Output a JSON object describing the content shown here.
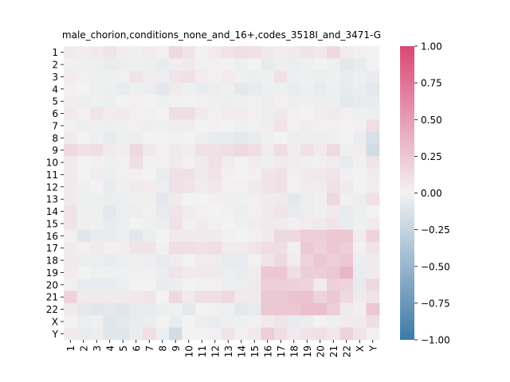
{
  "chart_data": {
    "type": "heatmap",
    "title": "male_chorion,conditions_none_and_16+,codes_3518I_and_3471-G",
    "xlabel": "",
    "ylabel": "",
    "row_labels": [
      "1",
      "2",
      "3",
      "4",
      "5",
      "6",
      "7",
      "8",
      "9",
      "10",
      "11",
      "12",
      "13",
      "14",
      "15",
      "16",
      "17",
      "18",
      "19",
      "20",
      "21",
      "22",
      "X",
      "Y"
    ],
    "col_labels": [
      "1",
      "2",
      "3",
      "4",
      "5",
      "6",
      "7",
      "8",
      "9",
      "10",
      "11",
      "12",
      "13",
      "14",
      "15",
      "16",
      "17",
      "18",
      "19",
      "20",
      "21",
      "22",
      "X",
      "Y"
    ],
    "values": [
      [
        0.05,
        0.03,
        0.05,
        0.08,
        0.03,
        0.02,
        0.04,
        0.02,
        0.15,
        0.08,
        0.02,
        0.04,
        0.09,
        0.12,
        0.1,
        0.06,
        0.03,
        0.05,
        0.08,
        0.06,
        0.15,
        0.04,
        0.02,
        0.0
      ],
      [
        0.02,
        -0.02,
        -0.03,
        -0.05,
        -0.04,
        -0.02,
        -0.03,
        -0.05,
        0.03,
        0.05,
        0.02,
        0.02,
        0.0,
        -0.02,
        0.0,
        -0.06,
        -0.03,
        -0.04,
        -0.02,
        0.0,
        -0.02,
        -0.08,
        -0.05,
        0.0
      ],
      [
        0.04,
        0.02,
        -0.02,
        -0.02,
        0.02,
        0.08,
        0.04,
        -0.03,
        0.08,
        0.1,
        0.04,
        0.02,
        0.04,
        -0.02,
        -0.03,
        -0.02,
        0.1,
        -0.03,
        -0.02,
        -0.04,
        -0.02,
        -0.05,
        -0.03,
        -0.05
      ],
      [
        0.02,
        0.0,
        -0.02,
        -0.03,
        -0.05,
        -0.02,
        -0.04,
        -0.08,
        0.05,
        -0.02,
        -0.05,
        -0.04,
        -0.02,
        -0.08,
        -0.06,
        -0.03,
        -0.02,
        -0.05,
        -0.03,
        -0.05,
        -0.03,
        -0.06,
        -0.04,
        -0.08
      ],
      [
        0.03,
        -0.04,
        -0.02,
        -0.03,
        0.0,
        0.02,
        0.0,
        -0.02,
        0.02,
        0.0,
        0.02,
        -0.02,
        -0.03,
        -0.02,
        0.02,
        -0.04,
        0.02,
        -0.03,
        -0.02,
        -0.03,
        -0.03,
        -0.08,
        -0.06,
        -0.05
      ],
      [
        0.05,
        0.02,
        0.08,
        0.04,
        0.05,
        0.02,
        0.02,
        0.0,
        0.12,
        0.12,
        0.05,
        0.02,
        0.04,
        0.04,
        0.02,
        -0.04,
        0.06,
        0.02,
        0.0,
        0.03,
        0.05,
        0.02,
        -0.02,
        -0.03
      ],
      [
        0.02,
        -0.03,
        -0.02,
        -0.03,
        -0.02,
        0.02,
        -0.03,
        -0.02,
        0.03,
        0.03,
        0.0,
        0.02,
        0.0,
        -0.02,
        0.02,
        0.03,
        0.08,
        0.02,
        0.03,
        0.02,
        0.02,
        0.0,
        0.02,
        0.12
      ],
      [
        0.05,
        0.0,
        -0.02,
        -0.06,
        -0.02,
        -0.04,
        0.0,
        0.0,
        0.02,
        0.0,
        -0.03,
        -0.06,
        -0.06,
        -0.08,
        -0.05,
        -0.02,
        0.0,
        -0.04,
        -0.03,
        -0.04,
        -0.02,
        0.0,
        -0.04,
        -0.15
      ],
      [
        0.15,
        0.1,
        0.12,
        0.05,
        0.03,
        0.15,
        0.06,
        0.02,
        0.05,
        0.03,
        0.1,
        0.1,
        0.12,
        0.15,
        0.12,
        0.04,
        0.12,
        0.04,
        0.1,
        0.05,
        0.14,
        -0.02,
        0.03,
        -0.18
      ],
      [
        0.05,
        0.0,
        0.02,
        -0.02,
        0.02,
        0.12,
        0.02,
        0.02,
        0.05,
        0.02,
        0.05,
        0.1,
        0.04,
        0.0,
        0.04,
        -0.02,
        0.05,
        0.04,
        -0.02,
        0.02,
        0.04,
        -0.06,
        0.02,
        0.08
      ],
      [
        0.05,
        0.0,
        0.03,
        -0.04,
        0.02,
        0.02,
        0.0,
        -0.05,
        0.1,
        0.1,
        0.05,
        0.08,
        0.02,
        0.0,
        0.02,
        0.08,
        0.1,
        0.02,
        0.05,
        0.06,
        0.08,
        0.02,
        0.0,
        0.04
      ],
      [
        0.05,
        -0.02,
        0.0,
        -0.05,
        -0.02,
        0.05,
        0.04,
        -0.04,
        0.1,
        0.08,
        0.04,
        0.06,
        0.02,
        0.02,
        0.05,
        0.08,
        0.1,
        0.02,
        0.04,
        0.04,
        0.1,
        0.05,
        0.0,
        0.03
      ],
      [
        0.05,
        -0.02,
        -0.02,
        -0.04,
        -0.04,
        -0.02,
        -0.02,
        -0.08,
        0.05,
        0.0,
        0.0,
        0.02,
        -0.02,
        -0.02,
        0.02,
        0.04,
        0.05,
        -0.08,
        -0.04,
        0.02,
        0.15,
        0.02,
        -0.04,
        0.1
      ],
      [
        0.08,
        -0.02,
        -0.02,
        -0.08,
        -0.04,
        -0.04,
        0.02,
        -0.06,
        0.08,
        0.04,
        0.02,
        0.0,
        0.02,
        -0.04,
        0.02,
        0.05,
        0.08,
        -0.06,
        -0.04,
        0.02,
        0.05,
        -0.06,
        -0.03,
        0.0
      ],
      [
        0.08,
        -0.02,
        0.02,
        -0.06,
        -0.04,
        0.0,
        -0.02,
        -0.04,
        0.1,
        0.02,
        0.04,
        0.02,
        0.0,
        -0.02,
        0.04,
        0.05,
        0.05,
        0.02,
        0.04,
        0.05,
        0.08,
        -0.05,
        -0.02,
        0.04
      ],
      [
        0.02,
        -0.1,
        -0.05,
        -0.05,
        -0.04,
        -0.08,
        -0.04,
        0.0,
        0.05,
        0.05,
        0.05,
        0.05,
        0.02,
        0.0,
        0.02,
        0.05,
        0.15,
        0.15,
        0.22,
        0.22,
        0.25,
        0.25,
        0.04,
        0.18
      ],
      [
        0.05,
        0.02,
        0.05,
        0.02,
        0.03,
        0.08,
        0.08,
        0.02,
        0.12,
        0.12,
        0.1,
        0.12,
        0.05,
        0.05,
        0.08,
        0.12,
        0.12,
        0.02,
        0.25,
        0.2,
        0.25,
        0.22,
        0.02,
        0.08
      ],
      [
        0.05,
        -0.04,
        -0.04,
        -0.05,
        -0.04,
        -0.02,
        -0.03,
        -0.06,
        0.04,
        0.0,
        0.04,
        0.04,
        -0.06,
        -0.06,
        0.02,
        0.08,
        0.15,
        0.04,
        0.18,
        0.25,
        0.22,
        0.25,
        -0.04,
        0.05
      ],
      [
        0.04,
        0.0,
        -0.02,
        -0.02,
        -0.02,
        0.02,
        0.02,
        -0.04,
        0.08,
        0.05,
        0.05,
        0.05,
        -0.04,
        -0.05,
        0.04,
        0.25,
        0.25,
        0.12,
        0.22,
        0.22,
        0.25,
        0.35,
        -0.05,
        0.05
      ],
      [
        0.02,
        -0.05,
        -0.05,
        -0.05,
        -0.04,
        0.0,
        0.0,
        -0.05,
        -0.04,
        0.0,
        0.02,
        0.02,
        -0.04,
        -0.04,
        0.05,
        0.22,
        0.22,
        0.2,
        0.18,
        0.04,
        0.2,
        0.18,
        -0.06,
        0.15
      ],
      [
        0.18,
        0.05,
        0.05,
        0.05,
        0.05,
        0.06,
        0.08,
        0.0,
        0.15,
        0.05,
        0.12,
        0.12,
        0.15,
        0.05,
        0.05,
        0.25,
        0.25,
        0.28,
        0.28,
        0.18,
        0.25,
        0.15,
        0.05,
        0.08
      ],
      [
        0.05,
        -0.08,
        -0.1,
        -0.08,
        -0.1,
        -0.06,
        -0.05,
        -0.04,
        -0.02,
        -0.08,
        0.0,
        0.02,
        -0.02,
        -0.08,
        -0.05,
        0.25,
        0.25,
        0.25,
        0.3,
        0.3,
        0.22,
        0.05,
        0.02,
        0.25
      ],
      [
        0.0,
        -0.04,
        -0.02,
        -0.1,
        -0.08,
        -0.05,
        -0.04,
        0.0,
        -0.05,
        0.0,
        -0.04,
        -0.05,
        -0.03,
        -0.02,
        0.02,
        0.05,
        0.08,
        -0.05,
        -0.04,
        0.0,
        -0.02,
        0.04,
        0.04,
        0.12
      ],
      [
        0.05,
        -0.05,
        -0.04,
        -0.1,
        -0.1,
        -0.05,
        0.12,
        -0.03,
        -0.18,
        0.0,
        0.0,
        0.02,
        0.08,
        0.02,
        0.05,
        0.22,
        0.12,
        0.05,
        0.08,
        0.1,
        0.06,
        0.18,
        0.08,
        0.02
      ]
    ],
    "vmin": -1.0,
    "vmax": 1.0,
    "colorbar_ticks": [
      -1.0,
      -0.75,
      -0.5,
      -0.25,
      0.0,
      0.25,
      0.5,
      0.75,
      1.0
    ],
    "colorbar_tick_labels": [
      "−1.00",
      "−0.75",
      "−0.50",
      "−0.25",
      "0.00",
      "0.25",
      "0.50",
      "0.75",
      "1.00"
    ],
    "colors": {
      "low": "#3d7aa6",
      "mid": "#f2f2f2",
      "high": "#d94877"
    }
  }
}
